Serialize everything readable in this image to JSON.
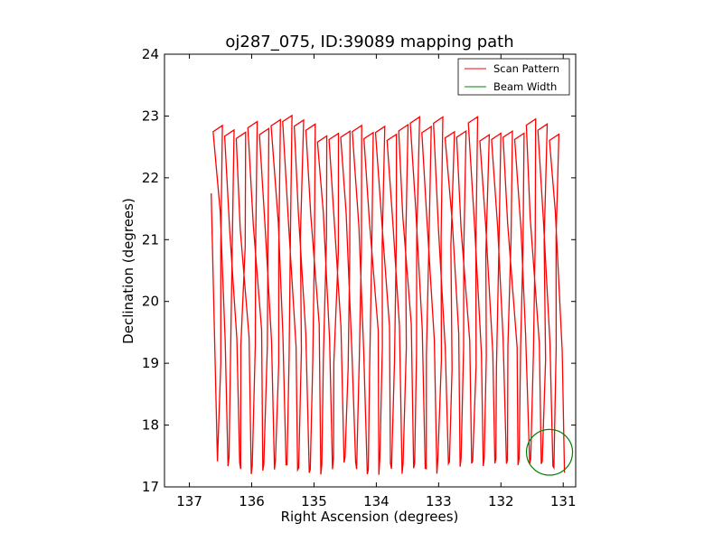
{
  "chart_data": {
    "type": "line",
    "title": "oj287_075, ID:39089 mapping path",
    "xlabel": "Right Ascension (degrees)",
    "ylabel": "Declination (degrees)",
    "xlim": [
      137.4,
      130.8
    ],
    "ylim": [
      17,
      24
    ],
    "x_inverted": true,
    "xticks": [
      "137",
      "136",
      "135",
      "134",
      "133",
      "132",
      "131"
    ],
    "yticks": [
      "17",
      "18",
      "19",
      "20",
      "21",
      "22",
      "23",
      "24"
    ],
    "legend_position": "top-right",
    "grid": false,
    "series": [
      {
        "name": "Scan Pattern",
        "color": "#ff0000",
        "type": "line",
        "ra_start": 136.5,
        "ra_end": 131.1,
        "leg_count": 30,
        "dec_bottom": 17.4,
        "dec_top": 22.85,
        "start_point": [
          136.65,
          21.75
        ]
      },
      {
        "name": "Beam Width",
        "color": "#008000",
        "type": "circle",
        "center": [
          131.22,
          17.56
        ],
        "radius_deg": 0.37
      }
    ]
  }
}
